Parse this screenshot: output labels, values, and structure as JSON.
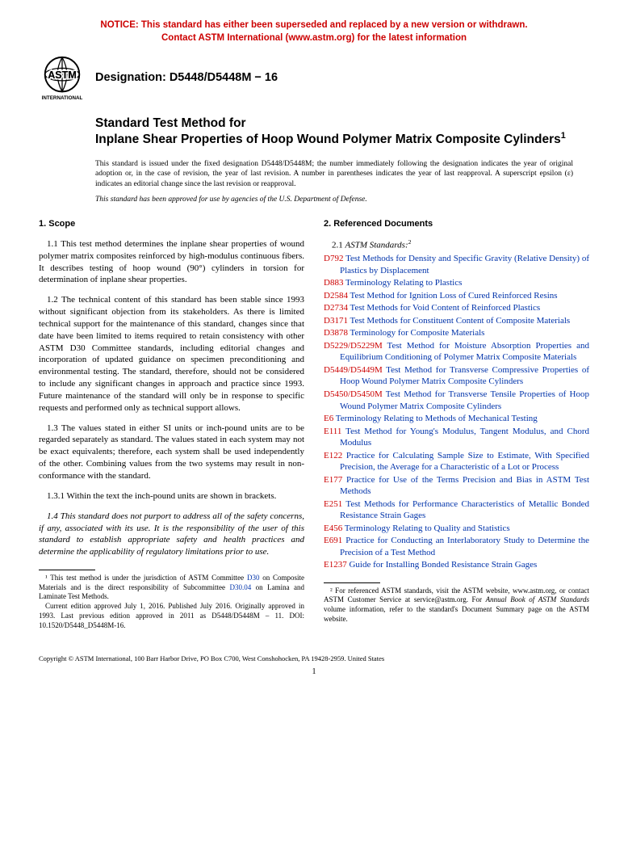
{
  "notice": {
    "color": "#cc0000",
    "line1": "NOTICE: This standard has either been superseded and replaced by a new version or withdrawn.",
    "line2": "Contact ASTM International (www.astm.org) for the latest information"
  },
  "designation": "Designation: D5448/D5448M − 16",
  "title": {
    "line1": "Standard Test Method for",
    "line2": "Inplane Shear Properties of Hoop Wound Polymer Matrix Composite Cylinders",
    "sup": "1"
  },
  "issue_note": "This standard is issued under the fixed designation D5448/D5448M; the number immediately following the designation indicates the year of original adoption or, in the case of revision, the year of last revision. A number in parentheses indicates the year of last reapproval. A superscript epsilon (ɛ) indicates an editorial change since the last revision or reapproval.",
  "dod_note": "This standard has been approved for use by agencies of the U.S. Department of Defense.",
  "sec1": {
    "head": "1. Scope",
    "p1": "1.1 This test method determines the inplane shear properties of wound polymer matrix composites reinforced by high-modulus continuous fibers. It describes testing of hoop wound (90°) cylinders in torsion for determination of inplane shear properties.",
    "p2": "1.2 The technical content of this standard has been stable since 1993 without significant objection from its stakeholders. As there is limited technical support for the maintenance of this standard, changes since that date have been limited to items required to retain consistency with other ASTM D30 Committee standards, including editorial changes and incorporation of updated guidance on specimen preconditioning and environmental testing. The standard, therefore, should not be considered to include any significant changes in approach and practice since 1993. Future maintenance of the standard will only be in response to specific requests and performed only as technical support allows.",
    "p3": "1.3 The values stated in either SI units or inch-pound units are to be regarded separately as standard. The values stated in each system may not be exact equivalents; therefore, each system shall be used independently of the other. Combining values from the two systems may result in non-conformance with the standard.",
    "p31": "1.3.1 Within the text the inch-pound units are shown in brackets.",
    "p4": "1.4 This standard does not purport to address all of the safety concerns, if any, associated with its use. It is the responsibility of the user of this standard to establish appropriate safety and health practices and determine the applicability of regulatory limitations prior to use."
  },
  "sec2": {
    "head": "2. Referenced Documents",
    "sub": "2.1 ASTM Standards:",
    "sup": "2",
    "refs": [
      {
        "code": "D792",
        "title": "Test Methods for Density and Specific Gravity (Relative Density) of Plastics by Displacement"
      },
      {
        "code": "D883",
        "title": "Terminology Relating to Plastics"
      },
      {
        "code": "D2584",
        "title": "Test Method for Ignition Loss of Cured Reinforced Resins"
      },
      {
        "code": "D2734",
        "title": "Test Methods for Void Content of Reinforced Plastics"
      },
      {
        "code": "D3171",
        "title": "Test Methods for Constituent Content of Composite Materials"
      },
      {
        "code": "D3878",
        "title": "Terminology for Composite Materials"
      },
      {
        "code": "D5229/D5229M",
        "title": "Test Method for Moisture Absorption Properties and Equilibrium Conditioning of Polymer Matrix Composite Materials"
      },
      {
        "code": "D5449/D5449M",
        "title": "Test Method for Transverse Compressive Properties of Hoop Wound Polymer Matrix Composite Cylinders"
      },
      {
        "code": "D5450/D5450M",
        "title": "Test Method for Transverse Tensile Properties of Hoop Wound Polymer Matrix Composite Cylinders"
      },
      {
        "code": "E6",
        "title": "Terminology Relating to Methods of Mechanical Testing"
      },
      {
        "code": "E111",
        "title": "Test Method for Young's Modulus, Tangent Modulus, and Chord Modulus"
      },
      {
        "code": "E122",
        "title": "Practice for Calculating Sample Size to Estimate, With Specified Precision, the Average for a Characteristic of a Lot or Process"
      },
      {
        "code": "E177",
        "title": "Practice for Use of the Terms Precision and Bias in ASTM Test Methods"
      },
      {
        "code": "E251",
        "title": "Test Methods for Performance Characteristics of Metallic Bonded Resistance Strain Gages"
      },
      {
        "code": "E456",
        "title": "Terminology Relating to Quality and Statistics"
      },
      {
        "code": "E691",
        "title": "Practice for Conducting an Interlaboratory Study to Determine the Precision of a Test Method"
      },
      {
        "code": "E1237",
        "title": "Guide for Installing Bonded Resistance Strain Gages"
      }
    ]
  },
  "footnote1": {
    "part1": "¹ This test method is under the jurisdiction of ASTM Committee ",
    "link1": "D30",
    "part2": " on Composite Materials and is the direct responsibility of Subcommittee ",
    "link2": "D30.04",
    "part3": " on Lamina and Laminate Test Methods.",
    "part4": "Current edition approved July 1, 2016. Published July 2016. Originally approved in 1993. Last previous edition approved in 2011 as D5448/D5448M – 11. DOI: 10.1520/D5448_D5448M-16."
  },
  "footnote2": "² For referenced ASTM standards, visit the ASTM website, www.astm.org, or contact ASTM Customer Service at service@astm.org. For Annual Book of ASTM Standards volume information, refer to the standard's Document Summary page on the ASTM website.",
  "copyright": "Copyright © ASTM International, 100 Barr Harbor Drive, PO Box C700, West Conshohocken, PA 19428-2959. United States",
  "pagenum": "1"
}
